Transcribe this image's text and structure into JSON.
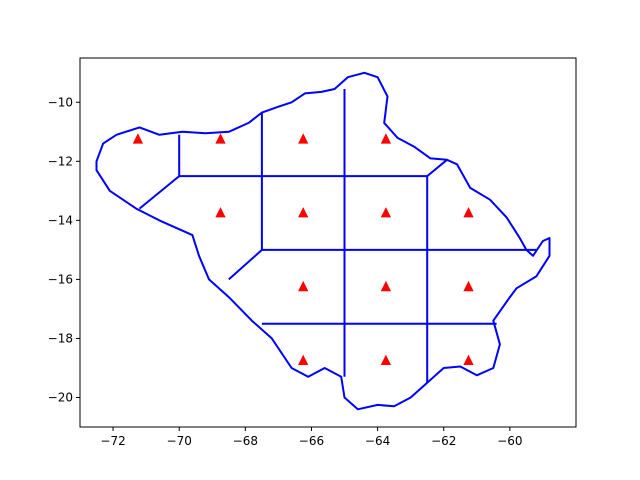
{
  "chart_data": {
    "type": "scatter",
    "title": "",
    "xlabel": "",
    "ylabel": "",
    "xlim": [
      -73.0,
      -58.0
    ],
    "ylim": [
      -21.0,
      -8.5
    ],
    "grid": false,
    "xticks": [
      -72,
      -70,
      -68,
      -66,
      -64,
      -62,
      -60
    ],
    "yticks": [
      -20,
      -18,
      -16,
      -14,
      -12,
      -10
    ],
    "xtick_labels": [
      "−72",
      "−70",
      "−68",
      "−66",
      "−64",
      "−62",
      "−60"
    ],
    "ytick_labels": [
      "−20",
      "−18",
      "−16",
      "−14",
      "−12",
      "−10"
    ],
    "colors": {
      "boundary": "#0000ff",
      "marker": "#ff0000",
      "axes": "#000000"
    },
    "outline": [
      [
        -72.5,
        -12.0
      ],
      [
        -72.3,
        -11.4
      ],
      [
        -71.9,
        -11.1
      ],
      [
        -71.2,
        -10.85
      ],
      [
        -70.6,
        -11.1
      ],
      [
        -69.9,
        -11.0
      ],
      [
        -69.2,
        -11.05
      ],
      [
        -68.5,
        -11.0
      ],
      [
        -67.9,
        -10.7
      ],
      [
        -67.5,
        -10.35
      ],
      [
        -67.0,
        -10.15
      ],
      [
        -66.6,
        -10.0
      ],
      [
        -66.2,
        -9.7
      ],
      [
        -65.7,
        -9.65
      ],
      [
        -65.3,
        -9.55
      ],
      [
        -64.9,
        -9.15
      ],
      [
        -64.4,
        -9.0
      ],
      [
        -64.0,
        -9.15
      ],
      [
        -63.7,
        -9.8
      ],
      [
        -63.8,
        -10.7
      ],
      [
        -63.4,
        -11.2
      ],
      [
        -62.9,
        -11.5
      ],
      [
        -62.4,
        -11.9
      ],
      [
        -61.9,
        -11.95
      ],
      [
        -61.6,
        -12.1
      ],
      [
        -61.2,
        -12.9
      ],
      [
        -60.6,
        -13.3
      ],
      [
        -60.1,
        -13.9
      ],
      [
        -59.7,
        -14.6
      ],
      [
        -59.5,
        -15.0
      ],
      [
        -59.3,
        -15.2
      ],
      [
        -59.0,
        -14.7
      ],
      [
        -58.8,
        -14.6
      ],
      [
        -58.8,
        -15.2
      ],
      [
        -59.2,
        -15.9
      ],
      [
        -59.8,
        -16.3
      ],
      [
        -60.0,
        -16.6
      ],
      [
        -60.5,
        -17.4
      ],
      [
        -60.3,
        -18.2
      ],
      [
        -60.5,
        -19.0
      ],
      [
        -61.0,
        -19.25
      ],
      [
        -61.5,
        -18.95
      ],
      [
        -62.0,
        -19.0
      ],
      [
        -62.5,
        -19.5
      ],
      [
        -63.0,
        -20.0
      ],
      [
        -63.5,
        -20.3
      ],
      [
        -64.0,
        -20.25
      ],
      [
        -64.6,
        -20.4
      ],
      [
        -65.0,
        -20.0
      ],
      [
        -65.1,
        -19.3
      ],
      [
        -65.6,
        -19.0
      ],
      [
        -66.1,
        -19.3
      ],
      [
        -66.6,
        -19.0
      ],
      [
        -67.2,
        -18.0
      ],
      [
        -67.8,
        -17.4
      ],
      [
        -68.5,
        -16.6
      ],
      [
        -69.1,
        -16.0
      ],
      [
        -69.4,
        -15.2
      ],
      [
        -69.6,
        -14.5
      ],
      [
        -70.2,
        -14.2
      ],
      [
        -70.6,
        -14.0
      ],
      [
        -71.3,
        -13.6
      ],
      [
        -71.7,
        -13.3
      ],
      [
        -72.1,
        -13.0
      ],
      [
        -72.5,
        -12.3
      ]
    ],
    "cell_boundaries": [
      [
        [
          -70.0,
          -11.1
        ],
        [
          -70.0,
          -12.5
        ],
        [
          -71.2,
          -13.6
        ]
      ],
      [
        [
          -70.0,
          -12.5
        ],
        [
          -62.5,
          -12.5
        ],
        [
          -61.9,
          -11.95
        ]
      ],
      [
        [
          -67.5,
          -10.35
        ],
        [
          -67.5,
          -15.0
        ],
        [
          -68.5,
          -16.0
        ]
      ],
      [
        [
          -67.5,
          -15.0
        ],
        [
          -59.2,
          -15.0
        ]
      ],
      [
        [
          -65.0,
          -9.55
        ],
        [
          -65.0,
          -19.3
        ]
      ],
      [
        [
          -62.5,
          -12.5
        ],
        [
          -62.5,
          -19.5
        ]
      ],
      [
        [
          -67.5,
          -17.5
        ],
        [
          -60.4,
          -17.5
        ]
      ]
    ],
    "markers": [
      [
        -71.25,
        -11.25
      ],
      [
        -68.75,
        -11.25
      ],
      [
        -66.25,
        -11.25
      ],
      [
        -63.75,
        -11.25
      ],
      [
        -68.75,
        -13.75
      ],
      [
        -66.25,
        -13.75
      ],
      [
        -63.75,
        -13.75
      ],
      [
        -61.25,
        -13.75
      ],
      [
        -66.25,
        -16.25
      ],
      [
        -63.75,
        -16.25
      ],
      [
        -61.25,
        -16.25
      ],
      [
        -66.25,
        -18.75
      ],
      [
        -63.75,
        -18.75
      ],
      [
        -61.25,
        -18.75
      ]
    ]
  }
}
